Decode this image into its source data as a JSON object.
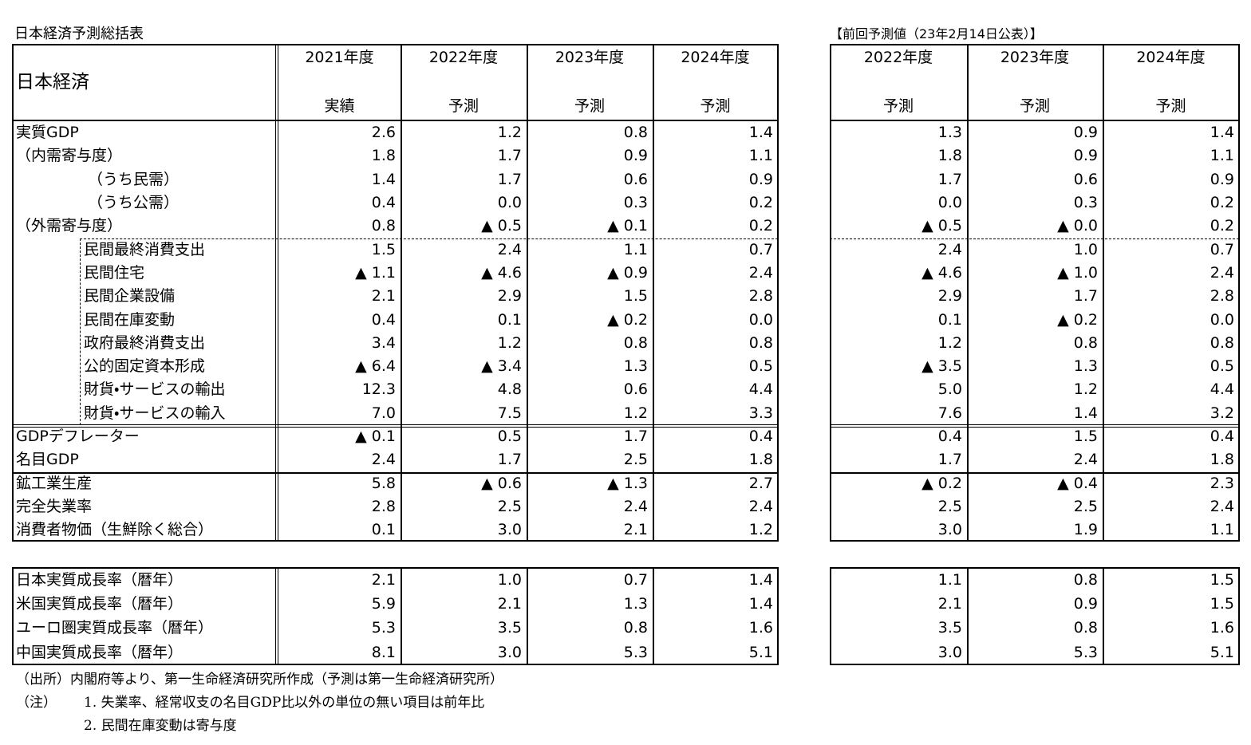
{
  "title": "日本経済予測総括表",
  "prev_title": "【前回予測値（23年2月14日公表）】",
  "header": {
    "label": "日本経済",
    "years": [
      "2021年度",
      "2022年度",
      "2023年度",
      "2024年度"
    ],
    "kinds": [
      "実績",
      "予測",
      "予測",
      "予測"
    ]
  },
  "prev_header": {
    "years": [
      "2022年度",
      "2023年度",
      "2024年度"
    ],
    "kinds": [
      "予測",
      "予測",
      "予測"
    ]
  },
  "rows": [
    {
      "label": "実質GDP",
      "values": [
        "2.6",
        "1.2",
        "0.8",
        "1.4"
      ],
      "prev": [
        "1.3",
        "0.9",
        "1.4"
      ]
    },
    {
      "label": "（内需寄与度）",
      "values": [
        "1.8",
        "1.7",
        "0.9",
        "1.1"
      ],
      "prev": [
        "1.8",
        "0.9",
        "1.1"
      ]
    },
    {
      "label": "（うち民需）",
      "values": [
        "1.4",
        "1.7",
        "0.6",
        "0.9"
      ],
      "prev": [
        "1.7",
        "0.6",
        "0.9"
      ]
    },
    {
      "label": "（うち公需）",
      "values": [
        "0.4",
        "0.0",
        "0.3",
        "0.2"
      ],
      "prev": [
        "0.0",
        "0.3",
        "0.2"
      ]
    },
    {
      "label": "（外需寄与度）",
      "values": [
        "0.8",
        "▲ 0.5",
        "▲ 0.1",
        "0.2"
      ],
      "prev": [
        "▲ 0.5",
        "▲ 0.0",
        "0.2"
      ]
    },
    {
      "label": "民間最終消費支出",
      "values": [
        "1.5",
        "2.4",
        "1.1",
        "0.7"
      ],
      "prev": [
        "2.4",
        "1.0",
        "0.7"
      ]
    },
    {
      "label": "民間住宅",
      "values": [
        "▲ 1.1",
        "▲ 4.6",
        "▲ 0.9",
        "2.4"
      ],
      "prev": [
        "▲ 4.6",
        "▲ 1.0",
        "2.4"
      ]
    },
    {
      "label": "民間企業設備",
      "values": [
        "2.1",
        "2.9",
        "1.5",
        "2.8"
      ],
      "prev": [
        "2.9",
        "1.7",
        "2.8"
      ]
    },
    {
      "label": "民間在庫変動",
      "values": [
        "0.4",
        "0.1",
        "▲ 0.2",
        "0.0"
      ],
      "prev": [
        "0.1",
        "▲ 0.2",
        "0.0"
      ]
    },
    {
      "label": "政府最終消費支出",
      "values": [
        "3.4",
        "1.2",
        "0.8",
        "0.8"
      ],
      "prev": [
        "1.2",
        "0.8",
        "0.8"
      ]
    },
    {
      "label": "公的固定資本形成",
      "values": [
        "▲ 6.4",
        "▲ 3.4",
        "1.3",
        "0.5"
      ],
      "prev": [
        "▲ 3.5",
        "1.3",
        "0.5"
      ]
    },
    {
      "label": "財貨・サービスの輸出",
      "values": [
        "12.3",
        "4.8",
        "0.6",
        "4.4"
      ],
      "prev": [
        "5.0",
        "1.2",
        "4.4"
      ]
    },
    {
      "label": "財貨・サービスの輸入",
      "values": [
        "7.0",
        "7.5",
        "1.2",
        "3.3"
      ],
      "prev": [
        "7.6",
        "1.4",
        "3.2"
      ]
    },
    {
      "label": "GDPデフレーター",
      "values": [
        "▲ 0.1",
        "0.5",
        "1.7",
        "0.4"
      ],
      "prev": [
        "0.4",
        "1.5",
        "0.4"
      ]
    },
    {
      "label": "名目GDP",
      "values": [
        "2.4",
        "1.7",
        "2.5",
        "1.8"
      ],
      "prev": [
        "1.7",
        "2.4",
        "1.8"
      ]
    },
    {
      "label": "鉱工業生産",
      "values": [
        "5.8",
        "▲ 0.6",
        "▲ 1.3",
        "2.7"
      ],
      "prev": [
        "▲ 0.2",
        "▲ 0.4",
        "2.3"
      ]
    },
    {
      "label": "完全失業率",
      "values": [
        "2.8",
        "2.5",
        "2.4",
        "2.4"
      ],
      "prev": [
        "2.5",
        "2.5",
        "2.4"
      ]
    },
    {
      "label": "消費者物価（生鮮除く総合）",
      "values": [
        "0.1",
        "3.0",
        "2.1",
        "1.2"
      ],
      "prev": [
        "3.0",
        "1.9",
        "1.1"
      ]
    }
  ],
  "world_rows": [
    {
      "label": "日本実質成長率（暦年）",
      "values": [
        "2.1",
        "1.0",
        "0.7",
        "1.4"
      ],
      "prev": [
        "1.1",
        "0.8",
        "1.5"
      ]
    },
    {
      "label": "米国実質成長率（暦年）",
      "values": [
        "5.9",
        "2.1",
        "1.3",
        "1.4"
      ],
      "prev": [
        "2.1",
        "0.9",
        "1.5"
      ]
    },
    {
      "label": "ユーロ圏実質成長率（暦年）",
      "values": [
        "5.3",
        "3.5",
        "0.8",
        "1.6"
      ],
      "prev": [
        "3.5",
        "0.8",
        "1.6"
      ]
    },
    {
      "label": "中国実質成長率（暦年）",
      "values": [
        "8.1",
        "3.0",
        "5.3",
        "5.1"
      ],
      "prev": [
        "3.0",
        "5.3",
        "5.1"
      ]
    }
  ],
  "notes": {
    "source": "（出所）内閣府等より、第一生命経済研究所作成（予測は第一生命経済研究所）",
    "label": "（注）",
    "items": [
      "1. 失業率、経常収支の名目GDP比以外の単位の無い項目は前年比",
      "2. 民間在庫変動は寄与度"
    ]
  }
}
